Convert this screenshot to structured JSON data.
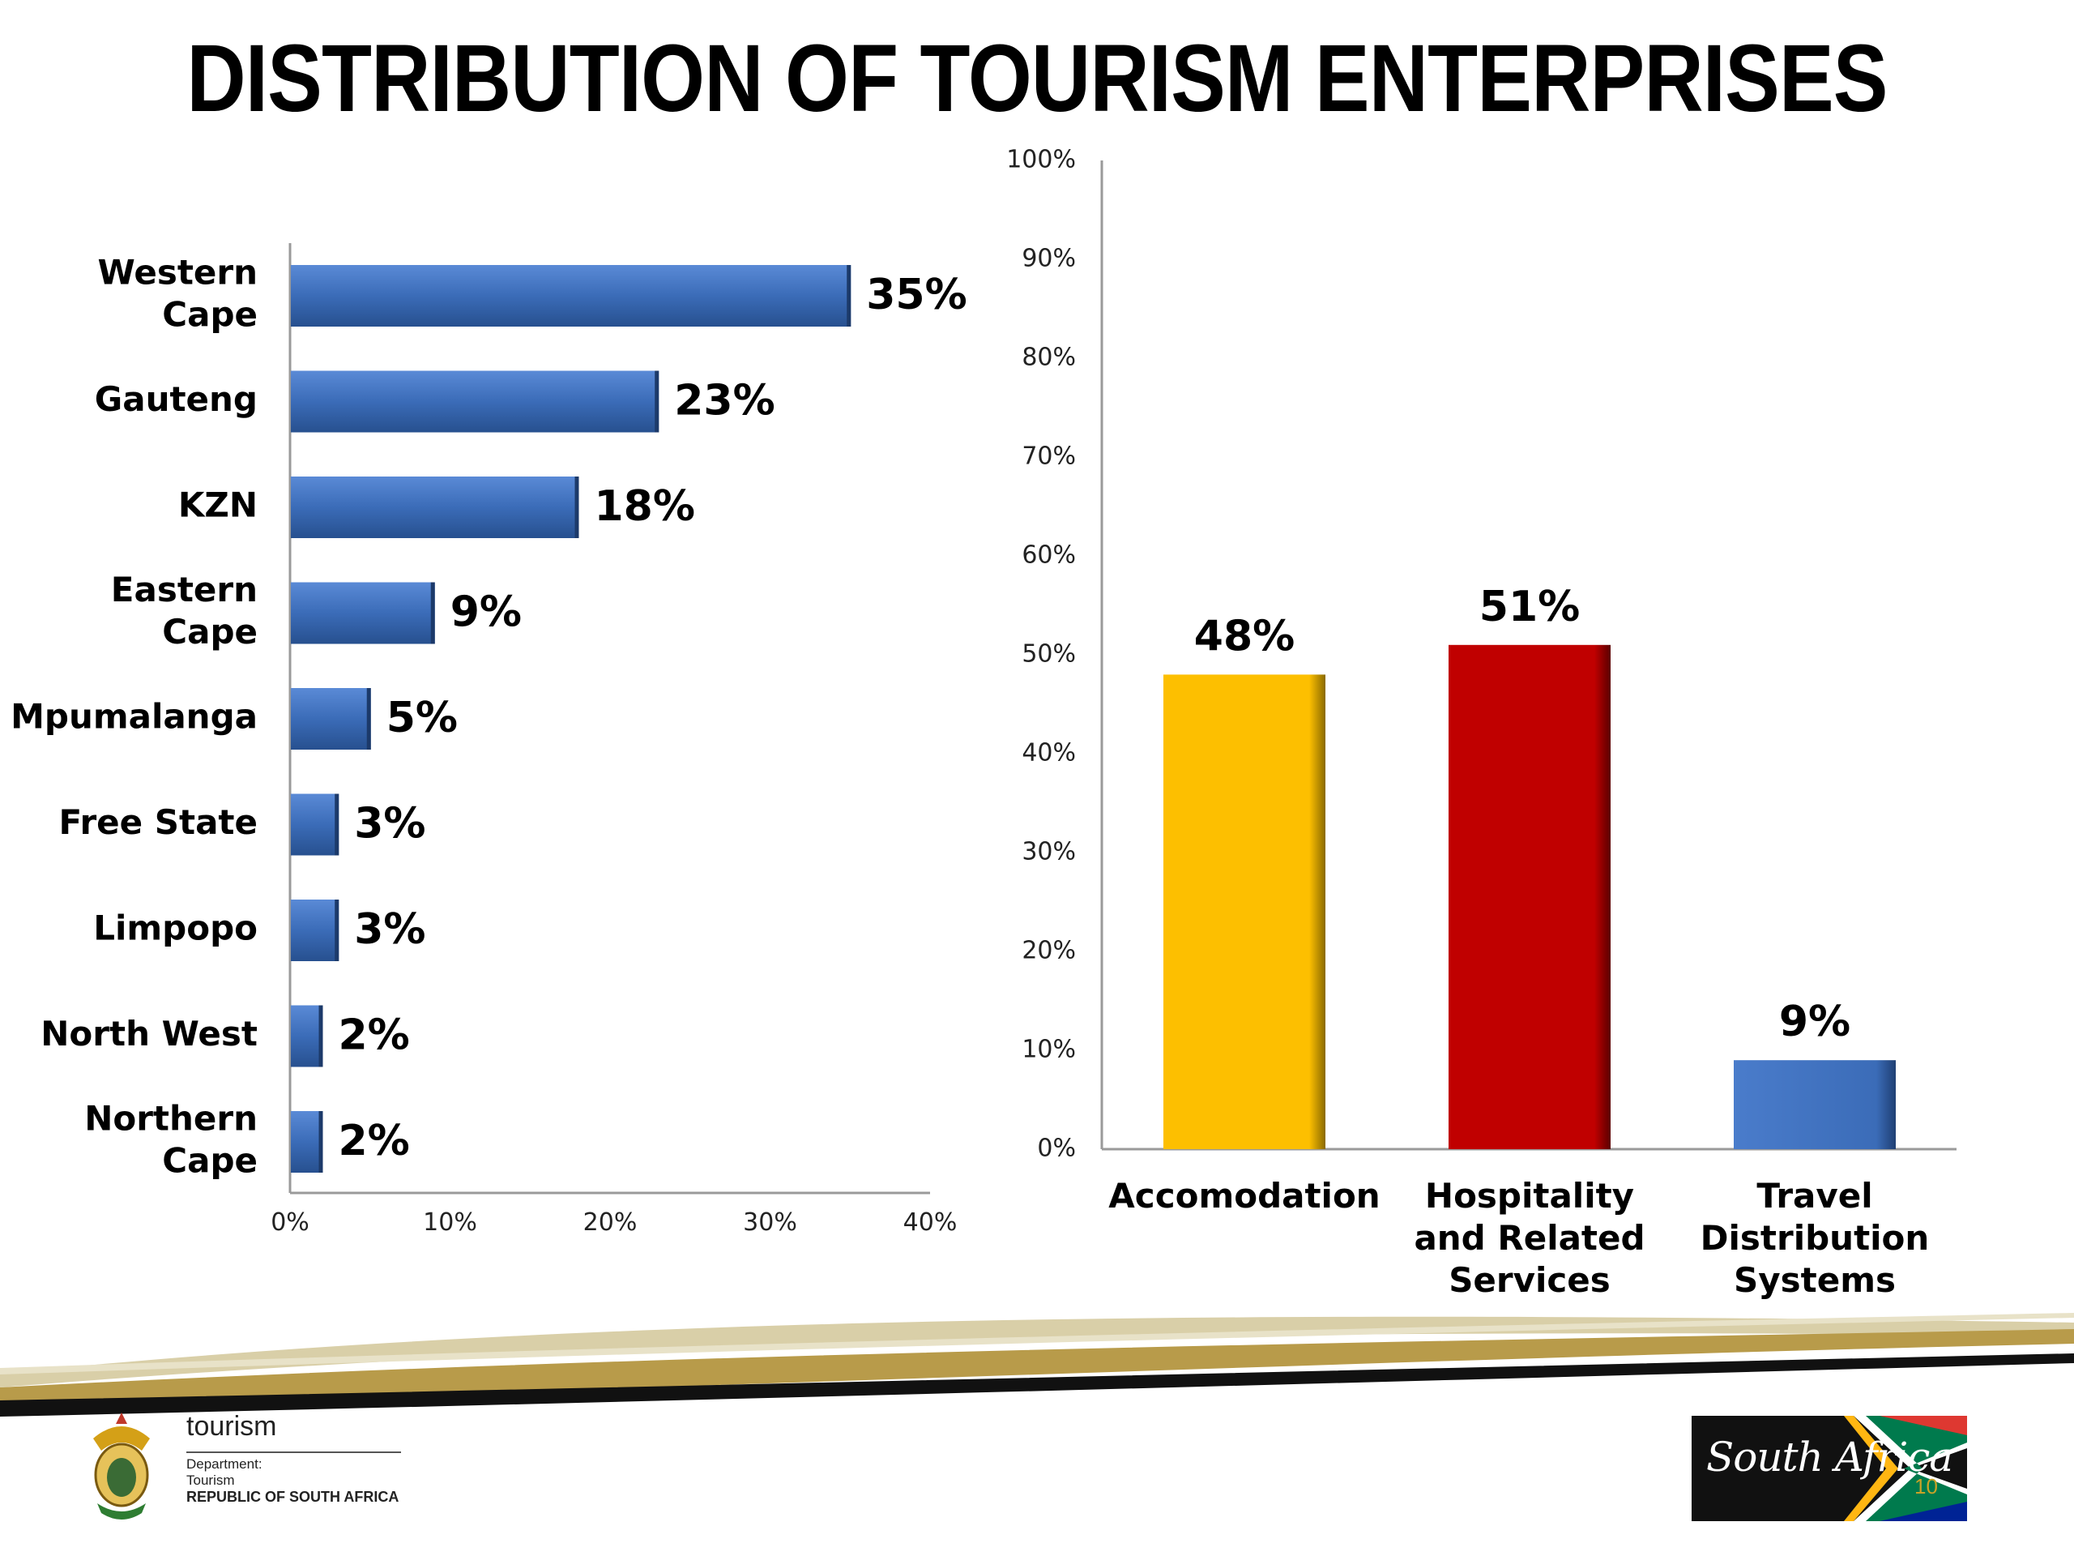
{
  "title": "DISTRIBUTION OF TOURISM ENTERPRISES",
  "chart_data": [
    {
      "type": "bar",
      "orientation": "horizontal",
      "categories": [
        "Western\nCape",
        "Gauteng",
        "KZN",
        "Eastern\nCape",
        "Mpumalanga",
        "Free State",
        "Limpopo",
        "North West",
        "Northern\nCape"
      ],
      "values": [
        35,
        23,
        18,
        9,
        5,
        3,
        3,
        2,
        2
      ],
      "data_labels": [
        "35%",
        "23%",
        "18%",
        "9%",
        "5%",
        "3%",
        "3%",
        "2%",
        "2%"
      ],
      "x_ticks": [
        "0%",
        "10%",
        "20%",
        "30%",
        "40%"
      ],
      "xlim": [
        0,
        40
      ],
      "grid": false,
      "colors": {
        "bar": "#3b6cb8"
      }
    },
    {
      "type": "bar",
      "orientation": "vertical",
      "categories": [
        "Accomodation",
        "Hospitality\nand Related\nServices",
        "Travel\nDistribution\nSystems"
      ],
      "values": [
        48,
        51,
        9
      ],
      "data_labels": [
        "48%",
        "51%",
        "9%"
      ],
      "y_ticks": [
        "0%",
        "10%",
        "20%",
        "30%",
        "40%",
        "50%",
        "60%",
        "70%",
        "80%",
        "90%",
        "100%"
      ],
      "ylim": [
        0,
        100
      ],
      "grid": false,
      "colors": {
        "bars": [
          "#fdbf00",
          "#c00000",
          "#3b6cb8"
        ]
      }
    }
  ],
  "footer": {
    "brand": "tourism",
    "department": "Department:",
    "sub": "Tourism",
    "country": "REPUBLIC OF SOUTH AFRICA",
    "logo_text": "South Africa",
    "page_number": "10"
  }
}
